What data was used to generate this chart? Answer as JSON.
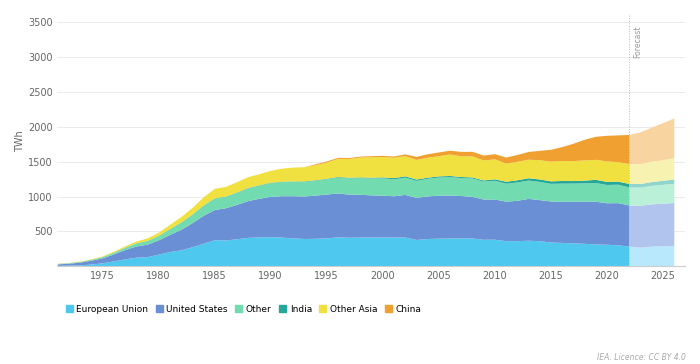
{
  "years_historical": [
    1971,
    1972,
    1973,
    1974,
    1975,
    1976,
    1977,
    1978,
    1979,
    1980,
    1981,
    1982,
    1983,
    1984,
    1985,
    1986,
    1987,
    1988,
    1989,
    1990,
    1991,
    1992,
    1993,
    1994,
    1995,
    1996,
    1997,
    1998,
    1999,
    2000,
    2001,
    2002,
    2003,
    2004,
    2005,
    2006,
    2007,
    2008,
    2009,
    2010,
    2011,
    2012,
    2013,
    2014,
    2015,
    2016,
    2017,
    2018,
    2019,
    2020,
    2021,
    2022
  ],
  "years_forecast": [
    2022,
    2023,
    2024,
    2025,
    2026
  ],
  "eu_hist": [
    14,
    18,
    22,
    34,
    51,
    78,
    107,
    132,
    140,
    175,
    212,
    236,
    281,
    331,
    382,
    378,
    396,
    416,
    421,
    426,
    419,
    408,
    399,
    402,
    408,
    423,
    417,
    420,
    420,
    421,
    420,
    420,
    385,
    399,
    404,
    407,
    408,
    407,
    388,
    389,
    368,
    368,
    375,
    368,
    349,
    343,
    336,
    330,
    321,
    317,
    308,
    291
  ],
  "us_hist": [
    22,
    27,
    39,
    55,
    72,
    100,
    134,
    160,
    178,
    205,
    245,
    294,
    344,
    400,
    432,
    462,
    493,
    527,
    555,
    577,
    593,
    604,
    609,
    619,
    628,
    628,
    618,
    612,
    604,
    600,
    591,
    610,
    604,
    610,
    616,
    615,
    607,
    595,
    577,
    576,
    566,
    578,
    599,
    588,
    588,
    591,
    598,
    605,
    612,
    594,
    605,
    588
  ],
  "other_hist": [
    4,
    5,
    7,
    9,
    14,
    22,
    30,
    42,
    50,
    60,
    80,
    100,
    117,
    143,
    162,
    162,
    172,
    184,
    188,
    197,
    202,
    207,
    210,
    214,
    219,
    228,
    233,
    239,
    242,
    246,
    243,
    248,
    243,
    252,
    260,
    263,
    257,
    264,
    257,
    268,
    258,
    263,
    262,
    260,
    252,
    258,
    259,
    262,
    268,
    262,
    264,
    258
  ],
  "india_hist": [
    2,
    2,
    3,
    3,
    3,
    3,
    3,
    3,
    4,
    4,
    4,
    5,
    5,
    5,
    5,
    5,
    5,
    5,
    5,
    5,
    5,
    5,
    6,
    6,
    7,
    8,
    9,
    10,
    11,
    14,
    17,
    19,
    19,
    16,
    16,
    17,
    15,
    15,
    16,
    21,
    27,
    31,
    33,
    36,
    36,
    38,
    36,
    38,
    46,
    44,
    44,
    50
  ],
  "other_asia_hist": [
    2,
    3,
    5,
    8,
    10,
    14,
    20,
    26,
    35,
    45,
    60,
    77,
    95,
    116,
    137,
    138,
    148,
    154,
    159,
    170,
    188,
    198,
    203,
    215,
    232,
    259,
    268,
    284,
    294,
    292,
    293,
    289,
    281,
    286,
    290,
    307,
    296,
    302,
    286,
    286,
    260,
    265,
    266,
    276,
    281,
    287,
    286,
    290,
    286,
    294,
    279,
    285
  ],
  "china_hist": [
    0,
    0,
    0,
    0,
    0,
    0,
    0,
    0,
    0,
    0,
    0,
    0,
    0,
    0,
    0,
    0,
    0,
    0,
    0,
    0,
    0,
    0,
    0,
    14,
    16,
    15,
    14,
    14,
    15,
    17,
    17,
    25,
    43,
    50,
    53,
    55,
    63,
    65,
    70,
    74,
    87,
    97,
    111,
    133,
    171,
    198,
    248,
    295,
    330,
    366,
    383,
    418
  ],
  "eu_fore": [
    291,
    275,
    290,
    295,
    300
  ],
  "us_fore": [
    588,
    600,
    605,
    610,
    615
  ],
  "other_fore": [
    258,
    260,
    265,
    270,
    275
  ],
  "india_fore": [
    50,
    52,
    55,
    58,
    61
  ],
  "other_asia_fore": [
    285,
    285,
    290,
    295,
    305
  ],
  "china_fore": [
    418,
    455,
    490,
    530,
    570
  ],
  "colors": {
    "eu": "#4fc8f0",
    "us": "#6b8fd4",
    "other": "#72dbb0",
    "india": "#25a898",
    "other_asia": "#f0e040",
    "china": "#f0a030"
  },
  "colors_forecast": {
    "eu": "#b8e8fb",
    "us": "#b0c4ee",
    "other": "#baf0d8",
    "india": "#90d5cc",
    "other_asia": "#f8f2b0",
    "china": "#f8d4a0"
  },
  "ylim": [
    0,
    3600
  ],
  "yticks": [
    0,
    500,
    1000,
    1500,
    2000,
    2500,
    3000,
    3500
  ],
  "ylabel": "TWh",
  "bg_color": "#ffffff",
  "grid_color": "#e8e8e8",
  "forecast_year": 2022,
  "legend_items": [
    "European Union",
    "United States",
    "Other",
    "India",
    "Other Asia",
    "China"
  ],
  "credit": "IEA. Licence: CC BY 4.0",
  "xticks": [
    1975,
    1980,
    1985,
    1990,
    1995,
    2000,
    2005,
    2010,
    2015,
    2020,
    2025
  ]
}
